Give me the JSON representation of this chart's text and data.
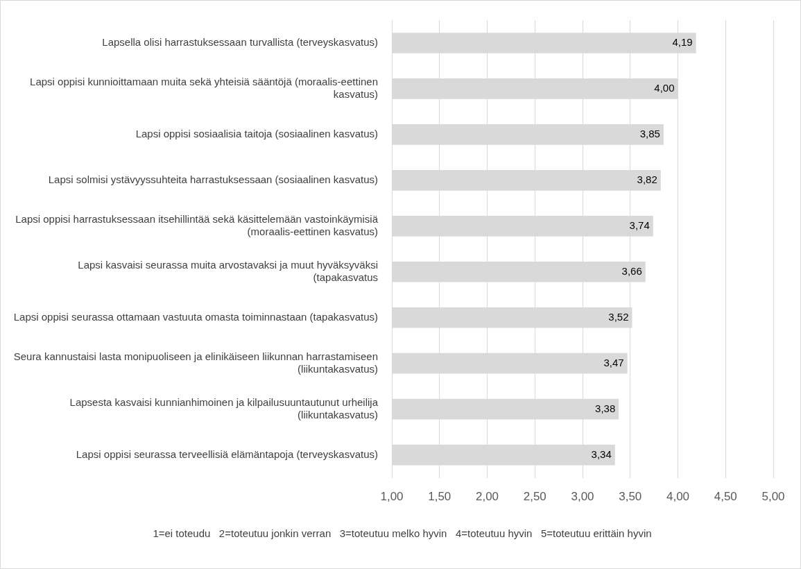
{
  "chart_data": {
    "type": "bar",
    "orientation": "horizontal",
    "categories": [
      "Lapsella olisi harrastuksessaan turvallista (terveyskasvatus)",
      "Lapsi oppisi kunnioittamaan muita sekä yhteisiä sääntöjä (moraalis-eettinen kasvatus)",
      "Lapsi oppisi sosiaalisia taitoja (sosiaalinen kasvatus)",
      "Lapsi solmisi ystävyyssuhteita harrastuksessaan (sosiaalinen kasvatus)",
      "Lapsi oppisi harrastuksessaan itsehillintää sekä käsittelemään vastoinkäymisiä (moraalis-eettinen kasvatus)",
      "Lapsi kasvaisi seurassa muita arvostavaksi ja muut hyväksyväksi (tapakasvatus",
      "Lapsi oppisi seurassa ottamaan vastuuta omasta toiminnastaan (tapakasvatus)",
      "Seura kannustaisi lasta monipuoliseen ja elinikäiseen liikunnan harrastamiseen (liikuntakasvatus)",
      "Lapsesta kasvaisi kunnianhimoinen ja kilpailusuuntautunut urheilija (liikuntakasvatus)",
      "Lapsi oppisi seurassa terveellisiä elämäntapoja (terveyskasvatus)"
    ],
    "values": [
      4.19,
      4.0,
      3.85,
      3.82,
      3.74,
      3.66,
      3.52,
      3.47,
      3.38,
      3.34
    ],
    "value_labels": [
      "4,19",
      "4,00",
      "3,85",
      "3,82",
      "3,74",
      "3,66",
      "3,52",
      "3,47",
      "3,38",
      "3,34"
    ],
    "color": "#d9d9d9",
    "xlim": [
      1,
      5
    ],
    "xticks": [
      {
        "value": 1,
        "label": "1,00"
      },
      {
        "value": 1.5,
        "label": "1,50"
      },
      {
        "value": 2,
        "label": "2,00"
      },
      {
        "value": 2.5,
        "label": "2,50"
      },
      {
        "value": 3,
        "label": "3,00"
      },
      {
        "value": 3.5,
        "label": "3,50"
      },
      {
        "value": 4,
        "label": "4,00"
      },
      {
        "value": 4.5,
        "label": "4,50"
      },
      {
        "value": 5,
        "label": "5,00"
      }
    ],
    "grid": "x",
    "legend": false,
    "annotations": [
      "1=ei toteudu   2=toteutuu jonkin verran   3=toteutuu melko hyvin   4=toteutuu hyvin   5=toteutuu erittäin hyvin"
    ]
  }
}
